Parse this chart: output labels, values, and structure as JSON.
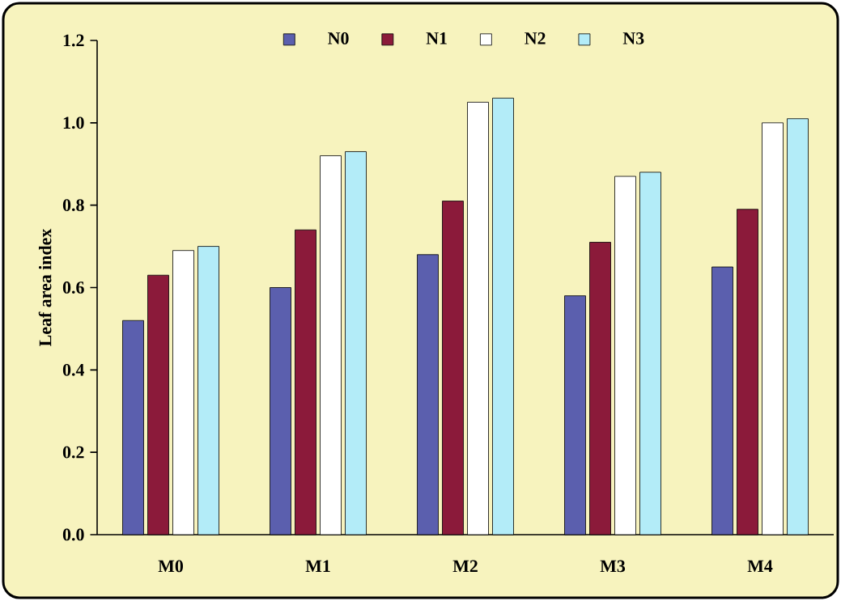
{
  "chart_data": {
    "type": "bar",
    "ylabel": "Leaf area index",
    "categories": [
      "M0",
      "M1",
      "M2",
      "M3",
      "M4"
    ],
    "series": [
      {
        "name": "N0",
        "color": "#5b5fae",
        "values": [
          0.52,
          0.6,
          0.68,
          0.58,
          0.65
        ]
      },
      {
        "name": "N1",
        "color": "#8b1a3a",
        "values": [
          0.63,
          0.74,
          0.81,
          0.71,
          0.79
        ]
      },
      {
        "name": "N2",
        "color": "#ffffff",
        "values": [
          0.69,
          0.92,
          1.05,
          0.87,
          1.0
        ]
      },
      {
        "name": "N3",
        "color": "#b3ecf8",
        "values": [
          0.7,
          0.93,
          1.06,
          0.88,
          1.01
        ]
      }
    ],
    "ylim": [
      0,
      1.2
    ],
    "yticks": [
      {
        "value": 0,
        "label": "0.0"
      },
      {
        "value": 0.2,
        "label": "0.2"
      },
      {
        "value": 0.4,
        "label": "0.4"
      },
      {
        "value": 0.6,
        "label": "0.6"
      },
      {
        "value": 0.8,
        "label": "0.8"
      },
      {
        "value": 1.0,
        "label": "1.0"
      },
      {
        "value": 1.2,
        "label": "1.2"
      }
    ],
    "legend": "top",
    "grid": false
  }
}
